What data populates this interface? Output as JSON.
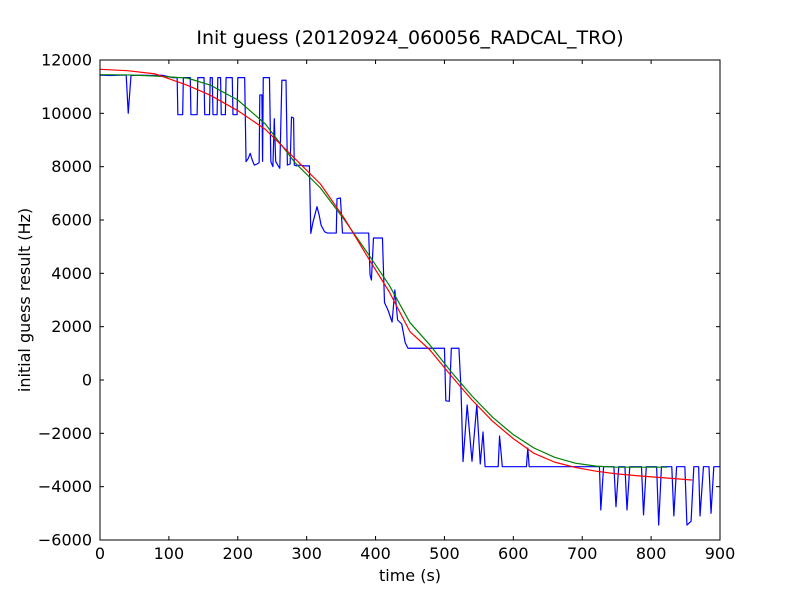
{
  "figure": {
    "background": "#ffffff",
    "frame_color": "#000000"
  },
  "chart_data": {
    "type": "line",
    "title": "Init guess (20120924_060056_RADCAL_TRO)",
    "xlabel": "time (s)",
    "ylabel": "initial guess result (Hz)",
    "xlim": [
      0,
      900
    ],
    "ylim": [
      -6000,
      12000
    ],
    "xticks": [
      0,
      100,
      200,
      300,
      400,
      500,
      600,
      700,
      800,
      900
    ],
    "xtick_labels": [
      "0",
      "100",
      "200",
      "300",
      "400",
      "500",
      "600",
      "700",
      "800",
      "900"
    ],
    "yticks": [
      12000,
      10000,
      8000,
      6000,
      4000,
      2000,
      0,
      -2000,
      -4000,
      -6000
    ],
    "ytick_labels": [
      "12000",
      "10000",
      "8000",
      "6000",
      "4000",
      "2000",
      "0",
      "−2000",
      "−4000",
      "−6000"
    ],
    "grid": false,
    "legend": null,
    "series": [
      {
        "name": "blue-data-line",
        "color": "#0000ff",
        "points": [
          [
            0,
            11430
          ],
          [
            15,
            11420
          ],
          [
            30,
            11430
          ],
          [
            38,
            11430
          ],
          [
            41,
            10000
          ],
          [
            45,
            11420
          ],
          [
            60,
            11430
          ],
          [
            75,
            11420
          ],
          [
            90,
            11430
          ],
          [
            105,
            11340
          ],
          [
            112,
            11340
          ],
          [
            113,
            9950
          ],
          [
            120,
            9950
          ],
          [
            121,
            11340
          ],
          [
            131,
            11340
          ],
          [
            132,
            9950
          ],
          [
            141,
            9950
          ],
          [
            142,
            11340
          ],
          [
            151,
            11340
          ],
          [
            152,
            9950
          ],
          [
            159,
            9950
          ],
          [
            160,
            11340
          ],
          [
            163,
            11340
          ],
          [
            164,
            9950
          ],
          [
            170,
            9950
          ],
          [
            171,
            11340
          ],
          [
            175,
            11340
          ],
          [
            176,
            9950
          ],
          [
            182,
            9950
          ],
          [
            183,
            11340
          ],
          [
            192,
            11340
          ],
          [
            193,
            9950
          ],
          [
            199,
            9950
          ],
          [
            200,
            11340
          ],
          [
            210,
            11340
          ],
          [
            212,
            8190
          ],
          [
            215,
            8300
          ],
          [
            218,
            8500
          ],
          [
            221,
            8250
          ],
          [
            224,
            8060
          ],
          [
            228,
            8100
          ],
          [
            231,
            8150
          ],
          [
            232,
            10690
          ],
          [
            235,
            10690
          ],
          [
            236,
            8200
          ],
          [
            237,
            11340
          ],
          [
            246,
            11340
          ],
          [
            248,
            8190
          ],
          [
            251,
            8000
          ],
          [
            253,
            9800
          ],
          [
            255,
            8200
          ],
          [
            258,
            8060
          ],
          [
            261,
            7940
          ],
          [
            264,
            11240
          ],
          [
            270,
            11240
          ],
          [
            272,
            8060
          ],
          [
            276,
            8100
          ],
          [
            278,
            9860
          ],
          [
            281,
            9825
          ],
          [
            282,
            8060
          ],
          [
            285,
            8030
          ],
          [
            290,
            8060
          ],
          [
            297,
            8030
          ],
          [
            304,
            8030
          ],
          [
            306,
            5500
          ],
          [
            309,
            5900
          ],
          [
            312,
            6200
          ],
          [
            315,
            6500
          ],
          [
            318,
            6200
          ],
          [
            321,
            5800
          ],
          [
            326,
            5560
          ],
          [
            330,
            5510
          ],
          [
            336,
            5510
          ],
          [
            343,
            5510
          ],
          [
            344,
            6800
          ],
          [
            349,
            6825
          ],
          [
            352,
            5510
          ],
          [
            360,
            5510
          ],
          [
            370,
            5510
          ],
          [
            380,
            5510
          ],
          [
            390,
            5510
          ],
          [
            392,
            3940
          ],
          [
            394,
            3750
          ],
          [
            397,
            5325
          ],
          [
            404,
            5325
          ],
          [
            410,
            5325
          ],
          [
            413,
            2900
          ],
          [
            418,
            2625
          ],
          [
            424,
            2175
          ],
          [
            428,
            3375
          ],
          [
            432,
            2250
          ],
          [
            438,
            2100
          ],
          [
            443,
            1400
          ],
          [
            447,
            1190
          ],
          [
            455,
            1190
          ],
          [
            465,
            1190
          ],
          [
            475,
            1190
          ],
          [
            485,
            1190
          ],
          [
            495,
            1190
          ],
          [
            500,
            1190
          ],
          [
            502,
            -780
          ],
          [
            507,
            -800
          ],
          [
            510,
            1190
          ],
          [
            516,
            1190
          ],
          [
            521,
            1190
          ],
          [
            524,
            -300
          ],
          [
            527,
            -3060
          ],
          [
            533,
            -937
          ],
          [
            540,
            -3050
          ],
          [
            547,
            -920
          ],
          [
            552,
            -3150
          ],
          [
            556,
            -1950
          ],
          [
            559,
            -3250
          ],
          [
            570,
            -3250
          ],
          [
            578,
            -3250
          ],
          [
            580,
            -2100
          ],
          [
            584,
            -3250
          ],
          [
            600,
            -3250
          ],
          [
            619,
            -3250
          ],
          [
            621,
            -2550
          ],
          [
            623,
            -3250
          ],
          [
            640,
            -3250
          ],
          [
            660,
            -3250
          ],
          [
            680,
            -3250
          ],
          [
            700,
            -3250
          ],
          [
            715,
            -3250
          ],
          [
            725,
            -3250
          ],
          [
            727,
            -4875
          ],
          [
            731,
            -3250
          ],
          [
            746,
            -3250
          ],
          [
            749,
            -4750
          ],
          [
            753,
            -3250
          ],
          [
            762,
            -3250
          ],
          [
            765,
            -4875
          ],
          [
            769,
            -3250
          ],
          [
            786,
            -3250
          ],
          [
            789,
            -5060
          ],
          [
            793,
            -3250
          ],
          [
            808,
            -3250
          ],
          [
            811,
            -5440
          ],
          [
            815,
            -3250
          ],
          [
            830,
            -3250
          ],
          [
            833,
            -5100
          ],
          [
            837,
            -3250
          ],
          [
            849,
            -3250
          ],
          [
            852,
            -5440
          ],
          [
            858,
            -5300
          ],
          [
            862,
            -3250
          ],
          [
            869,
            -3250
          ],
          [
            871,
            -5100
          ],
          [
            876,
            -3250
          ],
          [
            884,
            -3250
          ],
          [
            887,
            -5000
          ],
          [
            891,
            -3250
          ],
          [
            896,
            -3250
          ],
          [
            900,
            -3250
          ]
        ]
      },
      {
        "name": "green-fit-line",
        "color": "#008000",
        "points": [
          [
            0,
            11450
          ],
          [
            40,
            11440
          ],
          [
            80,
            11400
          ],
          [
            127,
            11320
          ],
          [
            160,
            11060
          ],
          [
            200,
            10500
          ],
          [
            240,
            9600
          ],
          [
            283,
            8150
          ],
          [
            320,
            7200
          ],
          [
            355,
            6000
          ],
          [
            390,
            4700
          ],
          [
            420,
            3550
          ],
          [
            450,
            2150
          ],
          [
            479,
            1310
          ],
          [
            510,
            300
          ],
          [
            540,
            -600
          ],
          [
            570,
            -1400
          ],
          [
            600,
            -2050
          ],
          [
            630,
            -2550
          ],
          [
            660,
            -2900
          ],
          [
            690,
            -3120
          ],
          [
            720,
            -3230
          ],
          [
            750,
            -3270
          ],
          [
            790,
            -3270
          ],
          [
            823,
            -3270
          ]
        ]
      },
      {
        "name": "red-fit-line",
        "color": "#ff0000",
        "points": [
          [
            0,
            11650
          ],
          [
            40,
            11600
          ],
          [
            80,
            11480
          ],
          [
            127,
            11050
          ],
          [
            160,
            10680
          ],
          [
            200,
            10100
          ],
          [
            240,
            9400
          ],
          [
            283,
            8300
          ],
          [
            320,
            7350
          ],
          [
            355,
            6050
          ],
          [
            390,
            4550
          ],
          [
            420,
            3300
          ],
          [
            450,
            1810
          ],
          [
            479,
            1125
          ],
          [
            510,
            150
          ],
          [
            540,
            -750
          ],
          [
            570,
            -1550
          ],
          [
            600,
            -2200
          ],
          [
            630,
            -2750
          ],
          [
            660,
            -3080
          ],
          [
            690,
            -3280
          ],
          [
            720,
            -3420
          ],
          [
            750,
            -3520
          ],
          [
            780,
            -3590
          ],
          [
            820,
            -3670
          ],
          [
            859,
            -3750
          ]
        ]
      }
    ]
  }
}
